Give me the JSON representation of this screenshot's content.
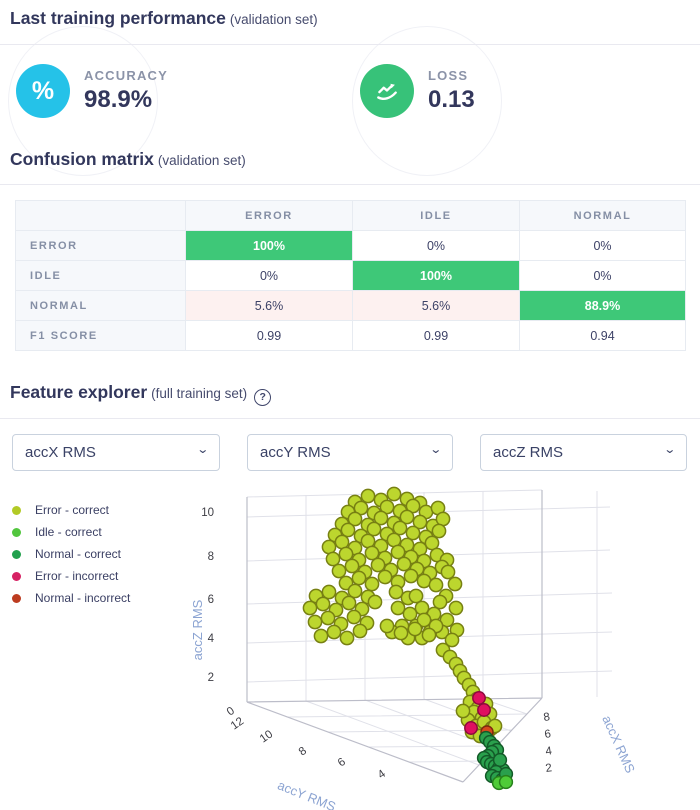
{
  "training": {
    "title": "Last training performance",
    "subtitle": "(validation set)",
    "accuracy": {
      "label": "ACCURACY",
      "value": "98.9%",
      "icon": "percent-icon",
      "color": "#25c2e8",
      "percent_glyph": "%"
    },
    "loss": {
      "label": "LOSS",
      "value": "0.13",
      "icon": "line-chart-icon",
      "color": "#37c279"
    }
  },
  "confusion": {
    "title": "Confusion matrix",
    "subtitle": "(validation set)",
    "columns": [
      "ERROR",
      "IDLE",
      "NORMAL"
    ],
    "rows": [
      {
        "label": "ERROR",
        "cells": [
          {
            "text": "100%",
            "type": "good"
          },
          {
            "text": "0%",
            "type": "plain"
          },
          {
            "text": "0%",
            "type": "plain"
          }
        ]
      },
      {
        "label": "IDLE",
        "cells": [
          {
            "text": "0%",
            "type": "plain"
          },
          {
            "text": "100%",
            "type": "good"
          },
          {
            "text": "0%",
            "type": "plain"
          }
        ]
      },
      {
        "label": "NORMAL",
        "cells": [
          {
            "text": "5.6%",
            "type": "bad"
          },
          {
            "text": "5.6%",
            "type": "bad"
          },
          {
            "text": "88.9%",
            "type": "good"
          }
        ]
      },
      {
        "label": "F1 SCORE",
        "cells": [
          {
            "text": "0.99",
            "type": "plain"
          },
          {
            "text": "0.99",
            "type": "plain"
          },
          {
            "text": "0.94",
            "type": "plain"
          }
        ]
      }
    ]
  },
  "feature_explorer": {
    "title": "Feature explorer",
    "subtitle": "(full training set)",
    "help_icon": "?",
    "selects": [
      {
        "value": "accX RMS"
      },
      {
        "value": "accY RMS"
      },
      {
        "value": "accZ RMS"
      }
    ]
  },
  "chart_data": {
    "type": "scatter",
    "projection": "3d",
    "title": "",
    "axes": {
      "x": {
        "label": "accX RMS",
        "tick_labels": [
          "8",
          "6",
          "4",
          "2"
        ],
        "range": [
          0,
          9
        ]
      },
      "y": {
        "label": "accY RMS",
        "tick_labels": [
          "12",
          "10",
          "8",
          "6",
          "4"
        ],
        "range": [
          2,
          13
        ]
      },
      "z": {
        "label": "accZ RMS",
        "tick_labels": [
          "10",
          "8",
          "6",
          "4",
          "2",
          "0"
        ],
        "range": [
          0,
          10.5
        ]
      }
    },
    "grid": true,
    "legend_position": "top-left",
    "legend": [
      {
        "label": "Error - correct",
        "color": "#b2ca26"
      },
      {
        "label": "Idle - correct",
        "color": "#52c63e"
      },
      {
        "label": "Normal - correct",
        "color": "#23a14e"
      },
      {
        "label": "Error - incorrect",
        "color": "#d62163"
      },
      {
        "label": "Normal - incorrect",
        "color": "#bd3c20"
      }
    ],
    "series": [
      {
        "name": "Error - correct",
        "color": "#bcd62e",
        "stroke": "#778012",
        "r": 6.6,
        "points": [
          [
            205,
            22
          ],
          [
            218,
            16
          ],
          [
            231,
            20
          ],
          [
            244,
            14
          ],
          [
            257,
            19
          ],
          [
            270,
            23
          ],
          [
            198,
            32
          ],
          [
            211,
            28
          ],
          [
            224,
            33
          ],
          [
            237,
            27
          ],
          [
            250,
            31
          ],
          [
            263,
            26
          ],
          [
            276,
            32
          ],
          [
            288,
            28
          ],
          [
            192,
            44
          ],
          [
            205,
            39
          ],
          [
            218,
            45
          ],
          [
            231,
            38
          ],
          [
            244,
            43
          ],
          [
            257,
            37
          ],
          [
            270,
            42
          ],
          [
            283,
            46
          ],
          [
            293,
            39
          ],
          [
            185,
            55
          ],
          [
            198,
            50
          ],
          [
            211,
            56
          ],
          [
            224,
            49
          ],
          [
            237,
            54
          ],
          [
            250,
            48
          ],
          [
            263,
            53
          ],
          [
            276,
            57
          ],
          [
            289,
            51
          ],
          [
            179,
            67
          ],
          [
            192,
            62
          ],
          [
            205,
            68
          ],
          [
            218,
            61
          ],
          [
            231,
            66
          ],
          [
            244,
            60
          ],
          [
            257,
            65
          ],
          [
            270,
            69
          ],
          [
            282,
            63
          ],
          [
            183,
            79
          ],
          [
            196,
            74
          ],
          [
            209,
            80
          ],
          [
            222,
            73
          ],
          [
            235,
            78
          ],
          [
            248,
            72
          ],
          [
            261,
            77
          ],
          [
            274,
            81
          ],
          [
            287,
            75
          ],
          [
            297,
            80
          ],
          [
            189,
            91
          ],
          [
            202,
            86
          ],
          [
            215,
            92
          ],
          [
            228,
            85
          ],
          [
            241,
            90
          ],
          [
            254,
            84
          ],
          [
            267,
            89
          ],
          [
            280,
            93
          ],
          [
            292,
            87
          ],
          [
            196,
            103
          ],
          [
            209,
            98
          ],
          [
            222,
            104
          ],
          [
            235,
            97
          ],
          [
            248,
            102
          ],
          [
            261,
            96
          ],
          [
            274,
            101
          ],
          [
            286,
            105
          ],
          [
            166,
            116
          ],
          [
            179,
            112
          ],
          [
            192,
            118
          ],
          [
            205,
            111
          ],
          [
            218,
            117
          ],
          [
            160,
            128
          ],
          [
            173,
            124
          ],
          [
            186,
            130
          ],
          [
            199,
            123
          ],
          [
            212,
            129
          ],
          [
            225,
            122
          ],
          [
            165,
            142
          ],
          [
            178,
            138
          ],
          [
            191,
            144
          ],
          [
            204,
            137
          ],
          [
            217,
            143
          ],
          [
            171,
            156
          ],
          [
            184,
            152
          ],
          [
            197,
            158
          ],
          [
            210,
            151
          ],
          [
            298,
            92
          ],
          [
            305,
            104
          ],
          [
            296,
            116
          ],
          [
            306,
            128
          ],
          [
            297,
            140
          ],
          [
            307,
            150
          ],
          [
            290,
            122
          ],
          [
            284,
            134
          ],
          [
            292,
            152
          ],
          [
            302,
            160
          ],
          [
            246,
            112
          ],
          [
            258,
            118
          ],
          [
            248,
            128
          ],
          [
            260,
            134
          ],
          [
            252,
            146
          ],
          [
            242,
            152
          ],
          [
            266,
            146
          ],
          [
            272,
            128
          ],
          [
            266,
            116
          ],
          [
            274,
            140
          ],
          [
            280,
            152
          ],
          [
            286,
            146
          ],
          [
            272,
            158
          ],
          [
            258,
            158
          ],
          [
            237,
            146
          ],
          [
            251,
            153
          ],
          [
            265,
            149
          ],
          [
            279,
            155
          ],
          [
            293,
            170
          ],
          [
            300,
            177
          ],
          [
            306,
            184
          ],
          [
            310,
            191
          ],
          [
            314,
            198
          ],
          [
            319,
            205
          ],
          [
            323,
            212
          ],
          [
            327,
            219
          ],
          [
            331,
            226
          ],
          [
            320,
            222
          ],
          [
            328,
            228
          ],
          [
            336,
            224
          ],
          [
            324,
            232
          ],
          [
            332,
            238
          ],
          [
            340,
            234
          ],
          [
            318,
            240
          ],
          [
            326,
            246
          ],
          [
            334,
            242
          ],
          [
            342,
            248
          ],
          [
            322,
            252
          ],
          [
            330,
            256
          ],
          [
            338,
            252
          ],
          [
            345,
            246
          ],
          [
            313,
            231
          ]
        ]
      },
      {
        "name": "Error - incorrect",
        "color": "#df1060",
        "stroke": "#8d0a3c",
        "r": 6.2,
        "points": [
          [
            329,
            218
          ],
          [
            334,
            230
          ],
          [
            321,
            248
          ]
        ]
      },
      {
        "name": "Normal - incorrect",
        "color": "#d44a1e",
        "stroke": "#7e2a0e",
        "r": 6.0,
        "points": [
          [
            337,
            252
          ]
        ]
      },
      {
        "name": "Normal - correct",
        "color": "#2aa04d",
        "stroke": "#135a28",
        "r": 6.4,
        "points": [
          [
            336,
            258
          ],
          [
            340,
            262
          ],
          [
            344,
            266
          ],
          [
            347,
            270
          ],
          [
            342,
            272
          ],
          [
            338,
            276
          ],
          [
            334,
            278
          ],
          [
            337,
            282
          ],
          [
            341,
            284
          ],
          [
            345,
            286
          ],
          [
            349,
            288
          ],
          [
            353,
            290
          ],
          [
            350,
            280
          ],
          [
            346,
            292
          ],
          [
            342,
            296
          ],
          [
            347,
            298
          ],
          [
            352,
            300
          ],
          [
            356,
            294
          ]
        ]
      },
      {
        "name": "Idle - correct",
        "color": "#4ecb37",
        "stroke": "#27801c",
        "r": 6.4,
        "points": [
          [
            349,
            303
          ],
          [
            356,
            302
          ]
        ]
      }
    ]
  }
}
